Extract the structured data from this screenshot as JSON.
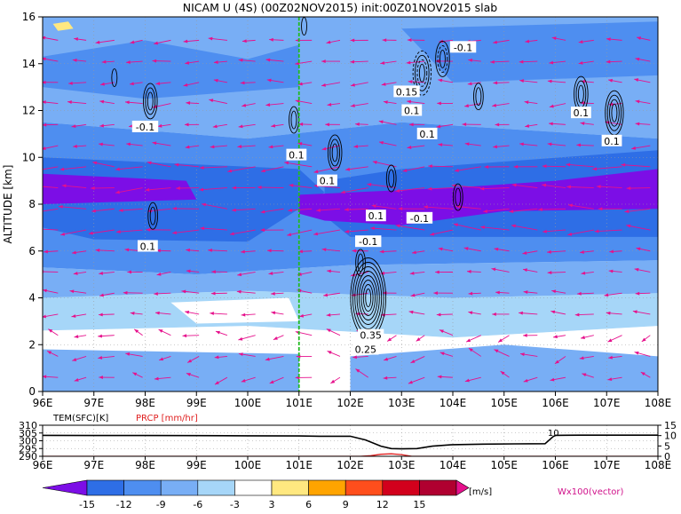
{
  "chart_data": [
    {
      "type": "heatmap",
      "title": "NICAM U (4S) (00Z02NOV2015) init:00Z01NOV2015 slab",
      "ylabel": "ALTITUDE [km]",
      "xlabel": "",
      "xlim": [
        96,
        108
      ],
      "ylim": [
        0,
        16
      ],
      "x_ticks": [
        "96E",
        "97E",
        "98E",
        "99E",
        "100E",
        "101E",
        "102E",
        "103E",
        "104E",
        "105E",
        "106E",
        "107E",
        "108E"
      ],
      "y_ticks": [
        "0",
        "2",
        "4",
        "6",
        "8",
        "10",
        "12",
        "14",
        "16"
      ],
      "grid": true,
      "marker_line_lon": 101,
      "contour_labels": [
        {
          "text": "-0.1",
          "x": 104.2,
          "y": 14.7
        },
        {
          "text": "0.15",
          "x": 103.1,
          "y": 12.8
        },
        {
          "text": "0.1",
          "x": 103.2,
          "y": 12.0
        },
        {
          "text": "0.1",
          "x": 103.5,
          "y": 11.0
        },
        {
          "text": "0.1",
          "x": 106.5,
          "y": 11.9
        },
        {
          "text": "0.1",
          "x": 107.1,
          "y": 10.7
        },
        {
          "text": "-0.1",
          "x": 98.0,
          "y": 11.3
        },
        {
          "text": "0.1",
          "x": 100.95,
          "y": 10.1
        },
        {
          "text": "0.1",
          "x": 101.55,
          "y": 9.0
        },
        {
          "text": "0.1",
          "x": 102.5,
          "y": 7.5
        },
        {
          "text": "-0.1",
          "x": 103.35,
          "y": 7.4
        },
        {
          "text": "-0.1",
          "x": 102.35,
          "y": 6.4
        },
        {
          "text": "0.1",
          "x": 98.05,
          "y": 6.2
        },
        {
          "text": "0.35",
          "x": 102.4,
          "y": 2.4
        },
        {
          "text": "0.25",
          "x": 102.3,
          "y": 1.8
        }
      ]
    },
    {
      "type": "line",
      "xlim": [
        96,
        108
      ],
      "left_label": "TEM(SFC)[K]",
      "right_label": "PRCP [mm/hr]",
      "left_ticks": [
        "310",
        "305",
        "300",
        "295",
        "290"
      ],
      "right_ticks": [
        "15",
        "10",
        "5",
        "0"
      ],
      "annotation": "10",
      "colors": {
        "tem": "#000000",
        "prcp": "#e02020"
      },
      "series": [
        {
          "name": "TEM(SFC)[K]",
          "x": [
            96,
            97,
            98,
            99,
            100,
            101,
            101.4,
            102,
            102.3,
            102.6,
            102.8,
            103,
            103.3,
            103.6,
            104,
            104.6,
            105.2,
            105.8,
            105.95,
            106,
            106.5,
            107,
            107.5,
            108
          ],
          "values": [
            303.5,
            303.4,
            303.4,
            303.3,
            303.2,
            303.1,
            302.9,
            302.9,
            300.5,
            296.5,
            295.0,
            294.8,
            295.0,
            296.5,
            297.5,
            297.8,
            298.0,
            298.1,
            302.5,
            303.5,
            303.6,
            303.6,
            303.6,
            303.6
          ]
        },
        {
          "name": "PRCP [mm/hr]",
          "x": [
            96,
            102.2,
            102.4,
            102.6,
            102.8,
            103,
            103.2,
            108
          ],
          "values": [
            0,
            0,
            0.3,
            1.0,
            1.2,
            0.8,
            0,
            0
          ]
        }
      ]
    }
  ],
  "colorbar": {
    "ticks": [
      "-15",
      "-12",
      "-9",
      "-6",
      "-3",
      "3",
      "6",
      "9",
      "12",
      "15"
    ],
    "unit": "[m/s]",
    "colors": [
      "#7c0ee6",
      "#2e6ee6",
      "#4e8ef0",
      "#78aef5",
      "#a6d6f8",
      "#ffffff",
      "#ffe880",
      "#ffa400",
      "#ff4e1c",
      "#d2001c",
      "#b00030",
      "#e6108c"
    ]
  },
  "vector_label": "Wx100(vector)"
}
